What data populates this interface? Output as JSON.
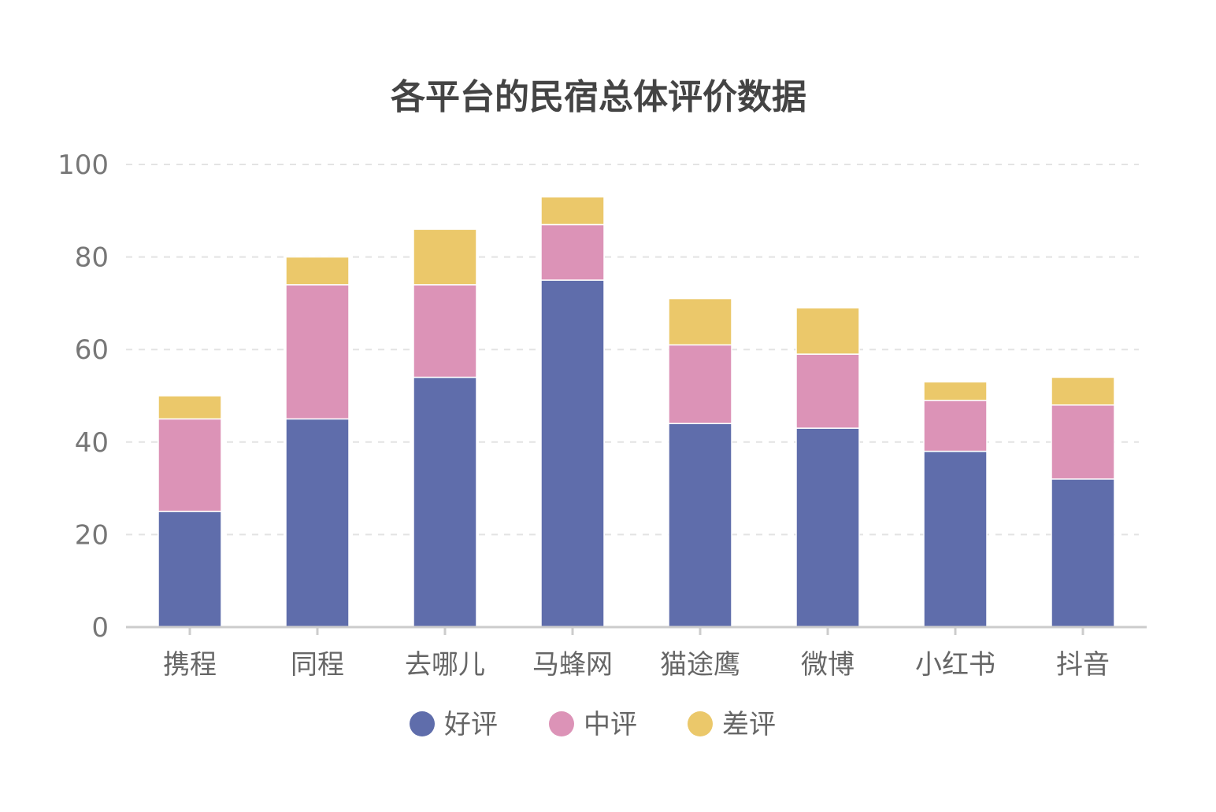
{
  "chart_data": {
    "type": "bar",
    "stacked": true,
    "title": "各平台的民宿总体评价数据",
    "categories": [
      "携程",
      "同程",
      "去哪儿",
      "马蜂网",
      "猫途鹰",
      "微博",
      "小红书",
      "抖音"
    ],
    "series": [
      {
        "name": "好评",
        "color": "#5f6dab",
        "values": [
          25,
          45,
          54,
          75,
          44,
          43,
          38,
          32
        ]
      },
      {
        "name": "中评",
        "color": "#dc93b7",
        "values": [
          20,
          29,
          20,
          12,
          17,
          16,
          11,
          16
        ]
      },
      {
        "name": "差评",
        "color": "#ebc86a",
        "values": [
          5,
          6,
          12,
          6,
          10,
          10,
          4,
          6
        ]
      }
    ],
    "ylim": [
      0,
      100
    ],
    "yticks": [
      "0",
      "20",
      "40",
      "60",
      "80",
      "100"
    ],
    "grid": true,
    "legend_position": "bottom"
  }
}
